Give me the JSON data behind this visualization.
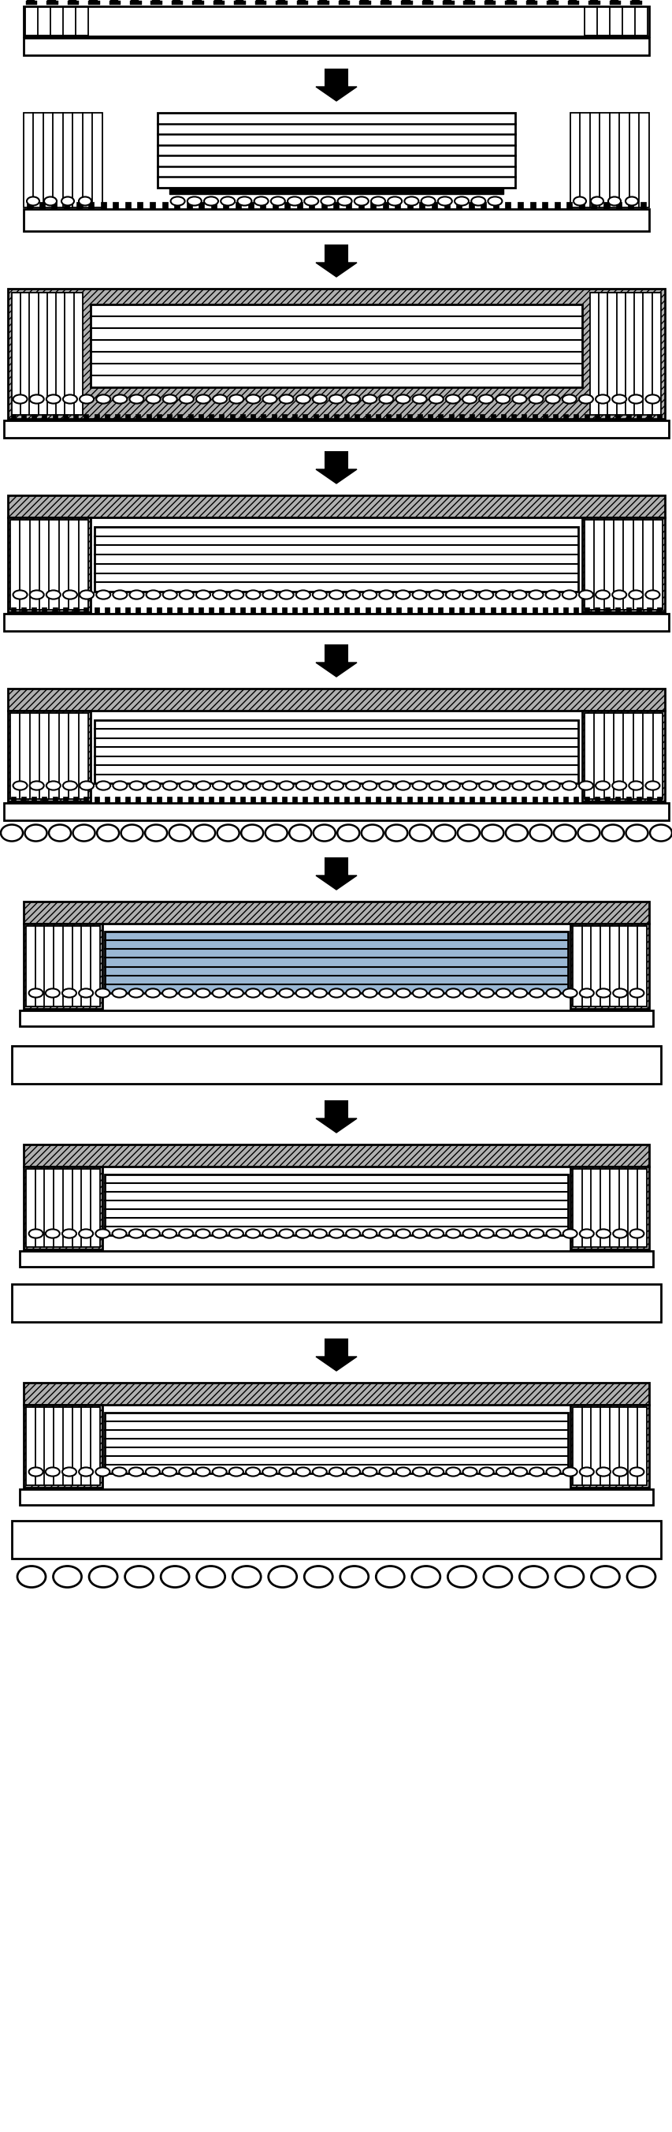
{
  "fig_width": 8.54,
  "fig_height": 27.03,
  "bg_color": "#ffffff",
  "hatch_color": "#888888",
  "hatch_pattern": "////",
  "hatch_fc": "#b0b0b0"
}
